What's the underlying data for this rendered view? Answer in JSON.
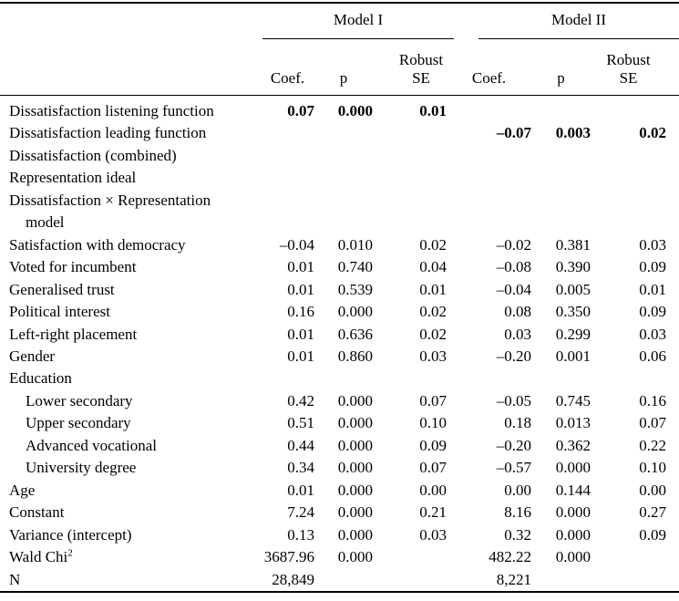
{
  "page": {
    "background": "#ffffff",
    "text_color": "#000000"
  },
  "table": {
    "spanners": [
      {
        "label": "Model I"
      },
      {
        "label": "Model II"
      }
    ],
    "subheaders": {
      "coef": "Coef.",
      "p": "p",
      "se": "Robust SE"
    },
    "rows": [
      {
        "label": "Dissatisfaction listening function",
        "bold": true,
        "m1": [
          "0.07",
          "0.000",
          "0.01"
        ],
        "m2": [
          "",
          "",
          ""
        ]
      },
      {
        "label": "Dissatisfaction leading function",
        "bold": true,
        "m1": [
          "",
          "",
          ""
        ],
        "m2": [
          "–0.07",
          "0.003",
          "0.02"
        ]
      },
      {
        "label": "Dissatisfaction (combined)",
        "m1": [
          "",
          "",
          ""
        ],
        "m2": [
          "",
          "",
          ""
        ]
      },
      {
        "label": "Representation ideal",
        "m1": [
          "",
          "",
          ""
        ],
        "m2": [
          "",
          "",
          ""
        ]
      },
      {
        "label": "Dissatisfaction × Representation",
        "label2": "model",
        "m1": [
          "",
          "",
          ""
        ],
        "m2": [
          "",
          "",
          ""
        ]
      },
      {
        "label": "Satisfaction with democracy",
        "m1": [
          "–0.04",
          "0.010",
          "0.02"
        ],
        "m2": [
          "–0.02",
          "0.381",
          "0.03"
        ]
      },
      {
        "label": "Voted for incumbent",
        "m1": [
          "0.01",
          "0.740",
          "0.04"
        ],
        "m2": [
          "–0.08",
          "0.390",
          "0.09"
        ]
      },
      {
        "label": "Generalised trust",
        "m1": [
          "0.01",
          "0.539",
          "0.01"
        ],
        "m2": [
          "–0.04",
          "0.005",
          "0.01"
        ]
      },
      {
        "label": "Political interest",
        "m1": [
          "0.16",
          "0.000",
          "0.02"
        ],
        "m2": [
          "0.08",
          "0.350",
          "0.09"
        ]
      },
      {
        "label": "Left-right placement",
        "m1": [
          "0.01",
          "0.636",
          "0.02"
        ],
        "m2": [
          "0.03",
          "0.299",
          "0.03"
        ]
      },
      {
        "label": "Gender",
        "m1": [
          "0.01",
          "0.860",
          "0.03"
        ],
        "m2": [
          "–0.20",
          "0.001",
          "0.06"
        ]
      },
      {
        "label": "Education",
        "m1": [
          "",
          "",
          ""
        ],
        "m2": [
          "",
          "",
          ""
        ]
      },
      {
        "label": "Lower secondary",
        "indent": true,
        "m1": [
          "0.42",
          "0.000",
          "0.07"
        ],
        "m2": [
          "–0.05",
          "0.745",
          "0.16"
        ]
      },
      {
        "label": "Upper secondary",
        "indent": true,
        "m1": [
          "0.51",
          "0.000",
          "0.10"
        ],
        "m2": [
          "0.18",
          "0.013",
          "0.07"
        ]
      },
      {
        "label": "Advanced vocational",
        "indent": true,
        "m1": [
          "0.44",
          "0.000",
          "0.09"
        ],
        "m2": [
          "–0.20",
          "0.362",
          "0.22"
        ]
      },
      {
        "label": "University degree",
        "indent": true,
        "m1": [
          "0.34",
          "0.000",
          "0.07"
        ],
        "m2": [
          "–0.57",
          "0.000",
          "0.10"
        ]
      },
      {
        "label": "Age",
        "m1": [
          "0.01",
          "0.000",
          "0.00"
        ],
        "m2": [
          "0.00",
          "0.144",
          "0.00"
        ]
      },
      {
        "label": "Constant",
        "m1": [
          "7.24",
          "0.000",
          "0.21"
        ],
        "m2": [
          "8.16",
          "0.000",
          "0.27"
        ]
      },
      {
        "label": "Variance (intercept)",
        "m1": [
          "0.13",
          "0.000",
          "0.03"
        ],
        "m2": [
          "0.32",
          "0.000",
          "0.09"
        ]
      },
      {
        "label": "Wald Chi",
        "sup": "2",
        "m1": [
          "3687.96",
          "0.000",
          ""
        ],
        "m2": [
          "482.22",
          "0.000",
          ""
        ]
      },
      {
        "label": "N",
        "m1": [
          "28,849",
          "",
          ""
        ],
        "m2": [
          "8,221",
          "",
          ""
        ]
      }
    ]
  }
}
